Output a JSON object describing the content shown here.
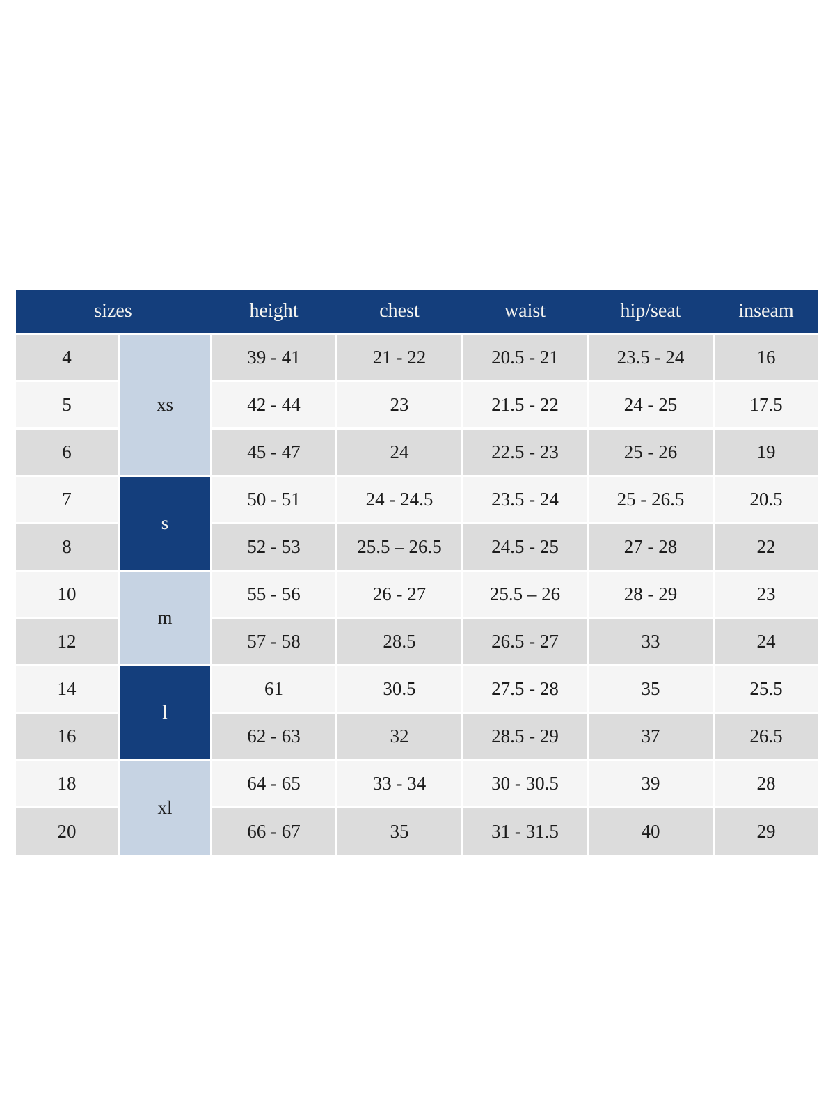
{
  "colors": {
    "header_navy": "#143e7c",
    "group_light_blue": "#c6d3e3",
    "row_gray": "#dcdcdc",
    "row_offwhite": "#f5f5f5",
    "text_dark": "#1c1c1c",
    "text_light": "#f5f4f0"
  },
  "table": {
    "header": {
      "sizes": "sizes",
      "height": "height",
      "chest": "chest",
      "waist": "waist",
      "hip_seat": "hip/seat",
      "inseam": "inseam"
    },
    "groups": [
      {
        "label": "xs",
        "rows_spanned": 3,
        "style": "light"
      },
      {
        "label": "s",
        "rows_spanned": 2,
        "style": "dark"
      },
      {
        "label": "m",
        "rows_spanned": 2,
        "style": "light"
      },
      {
        "label": "l",
        "rows_spanned": 2,
        "style": "dark"
      },
      {
        "label": "xl",
        "rows_spanned": 2,
        "style": "light"
      }
    ],
    "rows": [
      {
        "size": "4",
        "height": "39 - 41",
        "chest": "21 - 22",
        "waist": "20.5 - 21",
        "hip_seat": "23.5 - 24",
        "inseam": "16"
      },
      {
        "size": "5",
        "height": "42 - 44",
        "chest": "23",
        "waist": "21.5 - 22",
        "hip_seat": "24 - 25",
        "inseam": "17.5"
      },
      {
        "size": "6",
        "height": "45 - 47",
        "chest": "24",
        "waist": "22.5 - 23",
        "hip_seat": "25 - 26",
        "inseam": "19"
      },
      {
        "size": "7",
        "height": "50 - 51",
        "chest": "24 - 24.5",
        "waist": "23.5 - 24",
        "hip_seat": "25 - 26.5",
        "inseam": "20.5"
      },
      {
        "size": "8",
        "height": "52 - 53",
        "chest": "25.5 – 26.5",
        "waist": "24.5 - 25",
        "hip_seat": "27 - 28",
        "inseam": "22"
      },
      {
        "size": "10",
        "height": "55 - 56",
        "chest": "26 - 27",
        "waist": "25.5 – 26",
        "hip_seat": "28 - 29",
        "inseam": "23"
      },
      {
        "size": "12",
        "height": "57 - 58",
        "chest": "28.5",
        "waist": "26.5 - 27",
        "hip_seat": "33",
        "inseam": "24"
      },
      {
        "size": "14",
        "height": "61",
        "chest": "30.5",
        "waist": "27.5 - 28",
        "hip_seat": "35",
        "inseam": "25.5"
      },
      {
        "size": "16",
        "height": "62 - 63",
        "chest": "32",
        "waist": "28.5 - 29",
        "hip_seat": "37",
        "inseam": "26.5"
      },
      {
        "size": "18",
        "height": "64 - 65",
        "chest": "33 - 34",
        "waist": "30 - 30.5",
        "hip_seat": "39",
        "inseam": "28"
      },
      {
        "size": "20",
        "height": "66 - 67",
        "chest": "35",
        "waist": "31 - 31.5",
        "hip_seat": "40",
        "inseam": "29"
      }
    ]
  },
  "chart_data": {
    "type": "table",
    "title": "",
    "columns": [
      "sizes (number)",
      "sizes (letter)",
      "height",
      "chest",
      "waist",
      "hip/seat",
      "inseam"
    ],
    "rows": [
      [
        "4",
        "xs",
        "39 - 41",
        "21 - 22",
        "20.5 - 21",
        "23.5 - 24",
        "16"
      ],
      [
        "5",
        "xs",
        "42 - 44",
        "23",
        "21.5 - 22",
        "24 - 25",
        "17.5"
      ],
      [
        "6",
        "xs",
        "45 - 47",
        "24",
        "22.5 - 23",
        "25 - 26",
        "19"
      ],
      [
        "7",
        "s",
        "50 - 51",
        "24 - 24.5",
        "23.5 - 24",
        "25 - 26.5",
        "20.5"
      ],
      [
        "8",
        "s",
        "52 - 53",
        "25.5 – 26.5",
        "24.5 - 25",
        "27 - 28",
        "22"
      ],
      [
        "10",
        "m",
        "55 - 56",
        "26 - 27",
        "25.5 – 26",
        "28 - 29",
        "23"
      ],
      [
        "12",
        "m",
        "57 - 58",
        "28.5",
        "26.5 - 27",
        "33",
        "24"
      ],
      [
        "14",
        "l",
        "61",
        "30.5",
        "27.5 - 28",
        "35",
        "25.5"
      ],
      [
        "16",
        "l",
        "62 - 63",
        "32",
        "28.5 - 29",
        "37",
        "26.5"
      ],
      [
        "18",
        "xl",
        "64 - 65",
        "33 - 34",
        "30 - 30.5",
        "39",
        "28"
      ],
      [
        "20",
        "xl",
        "66 - 67",
        "35",
        "31 - 31.5",
        "40",
        "29"
      ]
    ],
    "layout_hints": {
      "header_background": "#143e7c",
      "letter_group_spans": {
        "xs": [
          0,
          2
        ],
        "s": [
          3,
          4
        ],
        "m": [
          5,
          6
        ],
        "l": [
          7,
          8
        ],
        "xl": [
          9,
          10
        ]
      },
      "row_shading_alternates": true,
      "grid": "white 3px gaps between cells"
    }
  }
}
